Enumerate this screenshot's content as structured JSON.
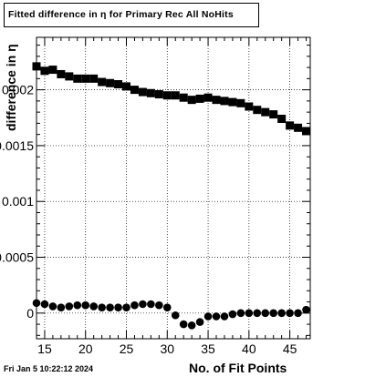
{
  "chart_data": {
    "type": "scatter",
    "title": "Fitted difference in  η for Primary Rec All NoHits",
    "xlabel": "No. of Fit Points",
    "ylabel": "difference in  η",
    "xlim": [
      14,
      47.5
    ],
    "ylim": [
      -0.00023,
      0.00247
    ],
    "x_ticks": [
      15,
      20,
      25,
      30,
      35,
      40,
      45
    ],
    "y_ticks": [
      {
        "value": 0,
        "label": "0"
      },
      {
        "value": 0.0005,
        "label": "0.0005"
      },
      {
        "value": 0.001,
        "label": "0.001"
      },
      {
        "value": 0.0015,
        "label": "0.0015"
      },
      {
        "value": 0.002,
        "label": "0.002"
      }
    ],
    "grid": true,
    "series": [
      {
        "marker": "square",
        "x": [
          14,
          15,
          16,
          17,
          18,
          19,
          20,
          21,
          22,
          23,
          24,
          25,
          26,
          27,
          28,
          29,
          30,
          31,
          32,
          33,
          34,
          35,
          36,
          37,
          38,
          39,
          40,
          41,
          42,
          43,
          44,
          45,
          46,
          47
        ],
        "y": [
          0.00221,
          0.00217,
          0.00218,
          0.00214,
          0.00212,
          0.0021,
          0.0021,
          0.0021,
          0.00207,
          0.00206,
          0.00205,
          0.00203,
          0.002,
          0.00198,
          0.00197,
          0.00196,
          0.00195,
          0.00195,
          0.00193,
          0.00191,
          0.00192,
          0.00193,
          0.00191,
          0.0019,
          0.00189,
          0.00188,
          0.00185,
          0.00182,
          0.0018,
          0.00178,
          0.00174,
          0.00168,
          0.00166,
          0.00163
        ]
      },
      {
        "marker": "circle",
        "x": [
          14,
          15,
          16,
          17,
          18,
          19,
          20,
          21,
          22,
          23,
          24,
          25,
          26,
          27,
          28,
          29,
          30,
          31,
          32,
          33,
          34,
          35,
          36,
          37,
          38,
          39,
          40,
          41,
          42,
          43,
          44,
          45,
          46,
          47
        ],
        "y": [
          9e-05,
          8e-05,
          6e-05,
          5e-05,
          6e-05,
          7e-05,
          7e-05,
          6e-05,
          5e-05,
          5e-05,
          5e-05,
          5e-05,
          7e-05,
          8e-05,
          8e-05,
          7e-05,
          5e-05,
          -2e-05,
          -0.0001,
          -0.00011,
          -8e-05,
          -3e-05,
          -3e-05,
          -3e-05,
          -1e-05,
          0.0,
          0.0,
          0.0,
          0.0,
          0.0,
          0.0,
          0.0,
          0.0,
          3e-05
        ]
      }
    ],
    "footer": "Fri Jan  5 10:22:12 2024"
  }
}
